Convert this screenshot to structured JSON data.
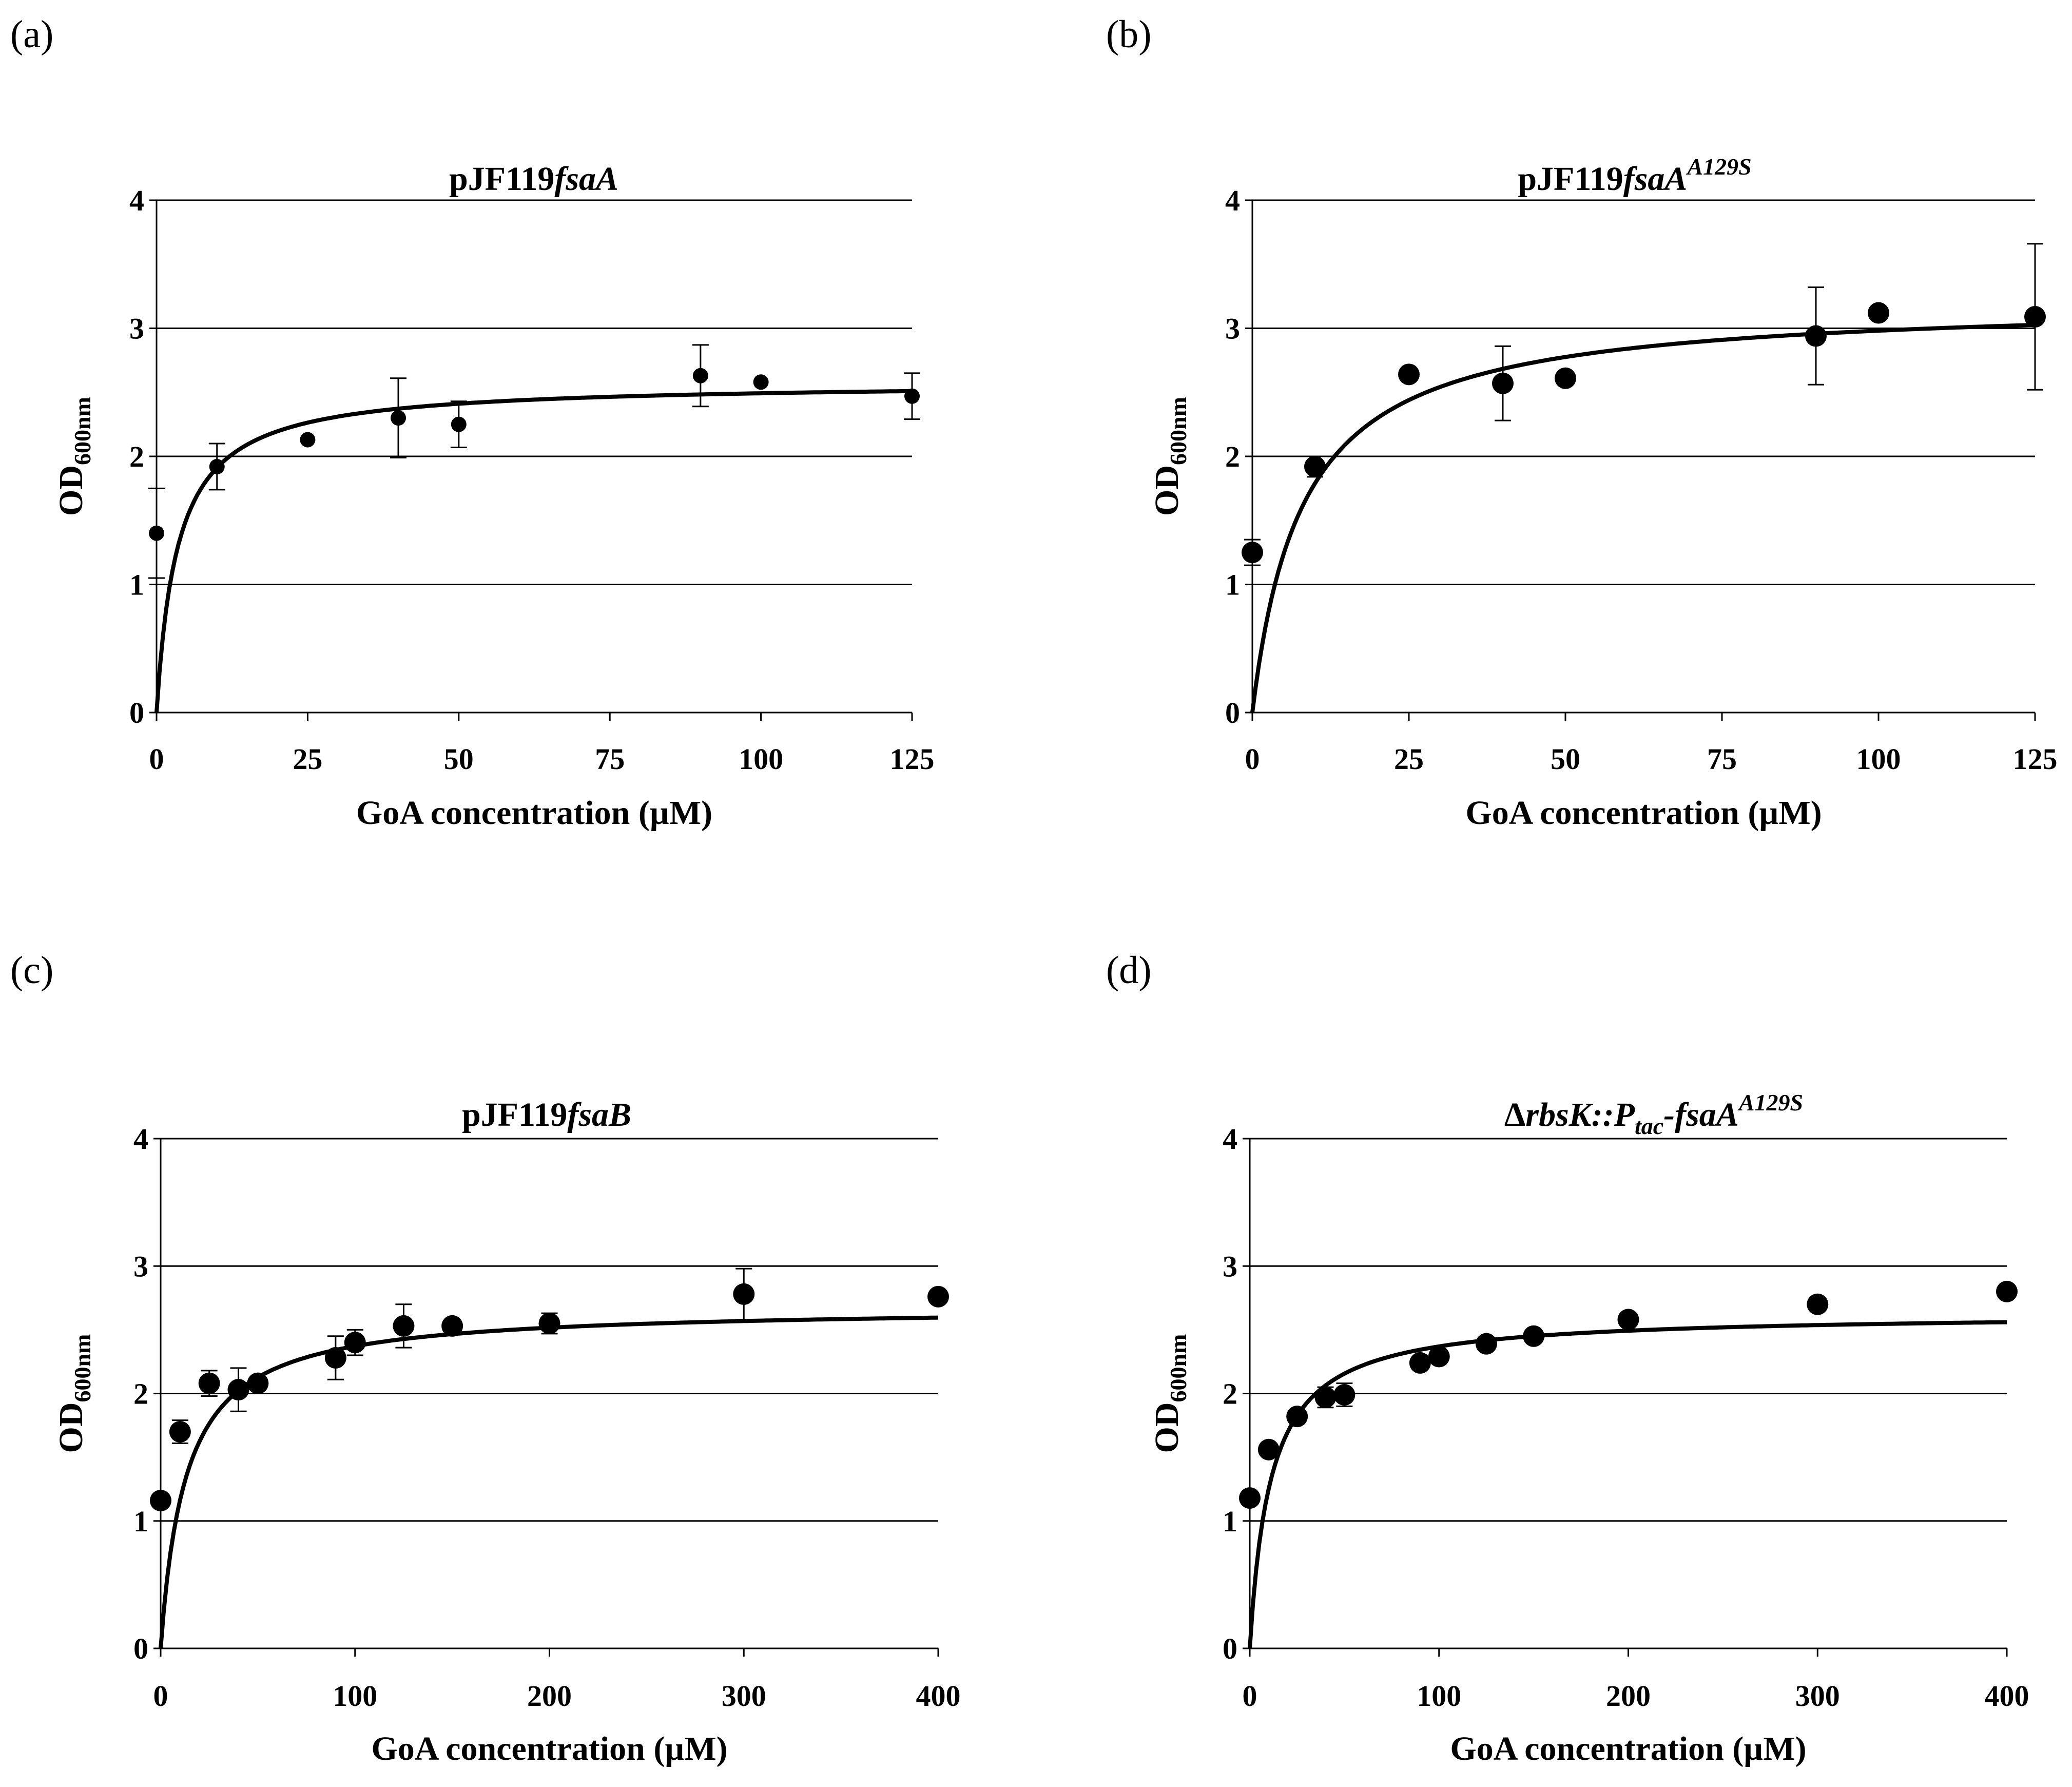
{
  "figure": {
    "panels": [
      {
        "letter": "(a)",
        "title_main": "pJF119",
        "title_italic": "fsaA",
        "title_sup": ""
      },
      {
        "letter": "(b)",
        "title_main": "pJF119",
        "title_italic": "fsaA",
        "title_sup": "A129S"
      },
      {
        "letter": "(c)",
        "title_main": "pJF119",
        "title_italic": "fsaB",
        "title_sup": ""
      },
      {
        "letter": "(d)",
        "title_prefix": "Δ",
        "title_italic_1": "rbsK::P",
        "title_sub": "tac",
        "title_italic_2": "-fsaA",
        "title_sup": "A129S"
      }
    ]
  },
  "chart_data": [
    {
      "type": "scatter",
      "panel": "(a)",
      "title": "pJF119fsaA",
      "xlabel": "GoA concentration (µM)",
      "ylabel_main": "OD",
      "ylabel_sub": "600nm",
      "xlim": [
        0,
        125
      ],
      "ylim": [
        0,
        4
      ],
      "xticks": [
        0,
        25,
        50,
        75,
        100,
        125
      ],
      "yticks": [
        0,
        1,
        2,
        3,
        4
      ],
      "grid": "horizontal",
      "marker": "small",
      "points": [
        {
          "x": 0,
          "y": 1.4,
          "err": 0.35
        },
        {
          "x": 10,
          "y": 1.92,
          "err": 0.18
        },
        {
          "x": 25,
          "y": 2.13,
          "err": 0
        },
        {
          "x": 40,
          "y": 2.3,
          "err": 0.31
        },
        {
          "x": 50,
          "y": 2.25,
          "err": 0.18
        },
        {
          "x": 90,
          "y": 2.63,
          "err": 0.24
        },
        {
          "x": 100,
          "y": 2.58,
          "err": 0
        },
        {
          "x": 125,
          "y": 2.47,
          "err": 0.18
        }
      ],
      "fit": {
        "model": "saturation",
        "ymax": 2.58,
        "k": 3.5
      }
    },
    {
      "type": "scatter",
      "panel": "(b)",
      "title": "pJF119fsaAA129S",
      "xlabel": "GoA concentration (µM)",
      "ylabel_main": "OD",
      "ylabel_sub": "600nm",
      "xlim": [
        0,
        125
      ],
      "ylim": [
        0,
        4
      ],
      "xticks": [
        0,
        25,
        50,
        75,
        100,
        125
      ],
      "yticks": [
        0,
        1,
        2,
        3,
        4
      ],
      "grid": "horizontal",
      "marker": "large",
      "points": [
        {
          "x": 0,
          "y": 1.25,
          "err": 0.1
        },
        {
          "x": 10,
          "y": 1.92,
          "err": 0.08
        },
        {
          "x": 25,
          "y": 2.64,
          "err": 0
        },
        {
          "x": 40,
          "y": 2.57,
          "err": 0.29
        },
        {
          "x": 50,
          "y": 2.61,
          "err": 0
        },
        {
          "x": 90,
          "y": 2.94,
          "err": 0.38
        },
        {
          "x": 100,
          "y": 3.12,
          "err": 0
        },
        {
          "x": 125,
          "y": 3.09,
          "err": 0.57
        }
      ],
      "fit": {
        "model": "saturation",
        "ymax": 3.22,
        "k": 8
      }
    },
    {
      "type": "scatter",
      "panel": "(c)",
      "title": "pJF119fsaB",
      "xlabel": "GoA concentration (µM)",
      "ylabel_main": "OD",
      "ylabel_sub": "600nm",
      "xlim": [
        0,
        400
      ],
      "ylim": [
        0,
        4
      ],
      "xticks": [
        0,
        100,
        200,
        300,
        400
      ],
      "yticks": [
        0,
        1,
        2,
        3,
        4
      ],
      "grid": "horizontal",
      "marker": "large",
      "points": [
        {
          "x": 0,
          "y": 1.16,
          "err": 0
        },
        {
          "x": 10,
          "y": 1.7,
          "err": 0.09
        },
        {
          "x": 25,
          "y": 2.08,
          "err": 0.1
        },
        {
          "x": 40,
          "y": 2.03,
          "err": 0.17
        },
        {
          "x": 50,
          "y": 2.08,
          "err": 0
        },
        {
          "x": 90,
          "y": 2.28,
          "err": 0.17
        },
        {
          "x": 100,
          "y": 2.4,
          "err": 0.1
        },
        {
          "x": 125,
          "y": 2.53,
          "err": 0.17
        },
        {
          "x": 150,
          "y": 2.53,
          "err": 0
        },
        {
          "x": 200,
          "y": 2.55,
          "err": 0.08
        },
        {
          "x": 300,
          "y": 2.78,
          "err": 0.2
        },
        {
          "x": 400,
          "y": 2.76,
          "err": 0
        }
      ],
      "fit": {
        "model": "saturation",
        "ymax": 2.68,
        "k": 13
      }
    },
    {
      "type": "scatter",
      "panel": "(d)",
      "title": "ΔrbsK::Ptac-fsaAA129S",
      "xlabel": "GoA concentration (µM)",
      "ylabel_main": "OD",
      "ylabel_sub": "600nm",
      "xlim": [
        0,
        400
      ],
      "ylim": [
        0,
        4
      ],
      "xticks": [
        0,
        100,
        200,
        300,
        400
      ],
      "yticks": [
        0,
        1,
        2,
        3,
        4
      ],
      "grid": "horizontal",
      "marker": "large",
      "points": [
        {
          "x": 0,
          "y": 1.18,
          "err": 0
        },
        {
          "x": 10,
          "y": 1.56,
          "err": 0
        },
        {
          "x": 25,
          "y": 1.82,
          "err": 0
        },
        {
          "x": 40,
          "y": 1.97,
          "err": 0.08
        },
        {
          "x": 50,
          "y": 1.99,
          "err": 0.09
        },
        {
          "x": 90,
          "y": 2.24,
          "err": 0
        },
        {
          "x": 100,
          "y": 2.29,
          "err": 0
        },
        {
          "x": 125,
          "y": 2.39,
          "err": 0
        },
        {
          "x": 150,
          "y": 2.45,
          "err": 0
        },
        {
          "x": 200,
          "y": 2.58,
          "err": 0
        },
        {
          "x": 300,
          "y": 2.7,
          "err": 0
        },
        {
          "x": 400,
          "y": 2.8,
          "err": 0
        }
      ],
      "fit": {
        "model": "saturation",
        "ymax": 2.63,
        "k": 11
      }
    }
  ]
}
